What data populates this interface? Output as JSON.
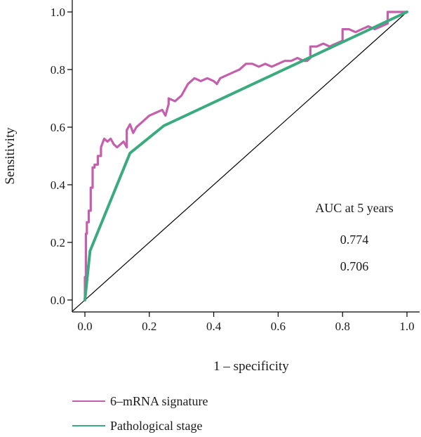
{
  "chart_data": {
    "type": "line",
    "title": "",
    "xlabel": "1 – specificity",
    "ylabel": "Sensitivity",
    "xlim": [
      0,
      1
    ],
    "ylim": [
      0,
      1
    ],
    "x_ticks": [
      "0.0",
      "0.2",
      "0.4",
      "0.6",
      "0.8",
      "1.0"
    ],
    "y_ticks": [
      "0.0",
      "0.2",
      "0.4",
      "0.6",
      "0.8",
      "1.0"
    ],
    "grid": false,
    "legend_position": "bottom-left",
    "annotation": {
      "header": "AUC at 5 years",
      "values": [
        "0.774",
        "0.706"
      ]
    },
    "reference_line": {
      "x": [
        0,
        1
      ],
      "y": [
        0,
        1
      ],
      "color": "#000000"
    },
    "series": [
      {
        "name": "6–mRNA signature",
        "color": "#c45fac",
        "x": [
          0.0,
          0.0,
          0.003,
          0.003,
          0.006,
          0.006,
          0.012,
          0.012,
          0.018,
          0.018,
          0.024,
          0.024,
          0.03,
          0.03,
          0.04,
          0.04,
          0.05,
          0.05,
          0.06,
          0.07,
          0.08,
          0.09,
          0.1,
          0.11,
          0.12,
          0.13,
          0.13,
          0.14,
          0.15,
          0.16,
          0.18,
          0.2,
          0.22,
          0.24,
          0.25,
          0.26,
          0.26,
          0.28,
          0.3,
          0.31,
          0.32,
          0.34,
          0.36,
          0.38,
          0.4,
          0.41,
          0.42,
          0.44,
          0.46,
          0.48,
          0.5,
          0.52,
          0.54,
          0.56,
          0.58,
          0.6,
          0.62,
          0.64,
          0.66,
          0.68,
          0.69,
          0.7,
          0.7,
          0.72,
          0.74,
          0.76,
          0.78,
          0.8,
          0.8,
          0.82,
          0.84,
          0.86,
          0.88,
          0.9,
          0.92,
          0.94,
          0.94,
          0.96,
          0.98,
          1.0
        ],
        "y": [
          0.0,
          0.08,
          0.08,
          0.23,
          0.23,
          0.27,
          0.27,
          0.31,
          0.31,
          0.39,
          0.39,
          0.46,
          0.46,
          0.47,
          0.47,
          0.5,
          0.5,
          0.53,
          0.56,
          0.55,
          0.56,
          0.54,
          0.53,
          0.54,
          0.55,
          0.53,
          0.59,
          0.61,
          0.58,
          0.6,
          0.62,
          0.64,
          0.65,
          0.66,
          0.64,
          0.68,
          0.7,
          0.69,
          0.71,
          0.73,
          0.75,
          0.77,
          0.76,
          0.77,
          0.76,
          0.75,
          0.77,
          0.78,
          0.79,
          0.8,
          0.82,
          0.82,
          0.81,
          0.82,
          0.81,
          0.82,
          0.83,
          0.83,
          0.84,
          0.83,
          0.83,
          0.84,
          0.88,
          0.88,
          0.89,
          0.88,
          0.89,
          0.9,
          0.94,
          0.94,
          0.93,
          0.94,
          0.95,
          0.94,
          0.95,
          0.96,
          1.0,
          1.0,
          1.0,
          1.0
        ]
      },
      {
        "name": "Pathological stage",
        "color": "#3bab7f",
        "x": [
          0.0,
          0.016,
          0.14,
          0.245,
          1.0
        ],
        "y": [
          0.0,
          0.17,
          0.51,
          0.605,
          1.0
        ]
      }
    ]
  }
}
